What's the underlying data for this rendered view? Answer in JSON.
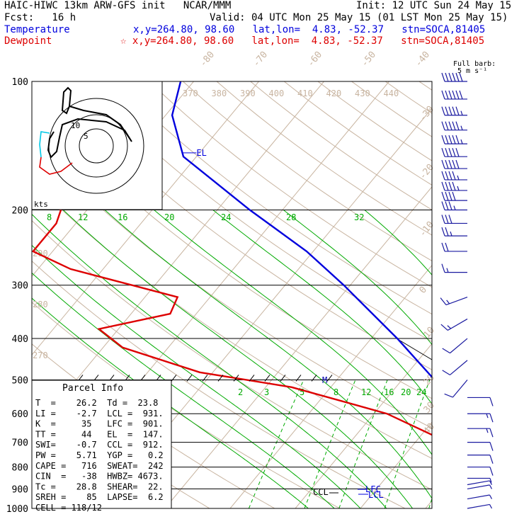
{
  "header": {
    "model": "HAIC-HIWC 13km ARW-GFS init   NCAR/MMM",
    "init": "Init: 12 UTC Sun 24 May 15",
    "fcst": "Fcst:   16 h",
    "valid": "Valid: 04 UTC Mon 25 May 15 (01 LST Mon 25 May 15)",
    "temp_label": "Temperature",
    "temp_info": "x,y=264.80, 98.60   lat,lon=  4.83, -52.37   stn=SOCA,81405",
    "dew_label": "Dewpoint",
    "dew_info": "☆ x,y=264.80, 98.60   lat,lon=  4.83, -52.37   stn=SOCA,81405",
    "barb_label1": "Full barb:",
    "barb_label2": "5 m s⁻¹"
  },
  "colors": {
    "temperature": "#0000dd",
    "dewpoint": "#dd0000",
    "mixing_ratio": "#00aa00",
    "adiabat": "#c8b4a0",
    "isobar": "#000000",
    "hodo_cyan": "#00c8e6"
  },
  "chart_data": {
    "type": "line",
    "title": "",
    "pressure_levels": [
      100,
      200,
      300,
      400,
      500,
      600,
      700,
      800,
      900,
      1000
    ],
    "isotherm_labels": [
      "-80",
      "-70",
      "-60",
      "-50",
      "-40",
      "-30",
      "-20",
      "-10",
      "0",
      "10",
      "20",
      "30",
      "40"
    ],
    "theta_labels": [
      "370",
      "380",
      "390",
      "400",
      "410",
      "420",
      "430",
      "440"
    ],
    "theta_left_labels": [
      "290",
      "280",
      "270"
    ],
    "mixing_ratio_labels_upper": [
      "8",
      "12",
      "16",
      "20",
      "24",
      "28",
      "32"
    ],
    "mixing_ratio_labels_lower": [
      "2",
      "3",
      "5",
      "8",
      "12",
      "16",
      "20",
      "24"
    ],
    "series": [
      {
        "name": "Temperature",
        "points": [
          [
            100,
            -82
          ],
          [
            120,
            -79
          ],
          [
            150,
            -72
          ],
          [
            200,
            -55
          ],
          [
            250,
            -41
          ],
          [
            300,
            -31
          ],
          [
            400,
            -16
          ],
          [
            500,
            -5
          ],
          [
            600,
            2
          ],
          [
            700,
            9
          ],
          [
            800,
            15
          ],
          [
            850,
            18
          ],
          [
            900,
            19
          ],
          [
            950,
            23
          ],
          [
            1000,
            26
          ]
        ]
      },
      {
        "name": "Dewpoint",
        "points": [
          [
            100,
            -95
          ],
          [
            125,
            -101
          ],
          [
            150,
            -100
          ],
          [
            175,
            -95
          ],
          [
            200,
            -84
          ],
          [
            215,
            -83
          ],
          [
            250,
            -83
          ],
          [
            275,
            -75
          ],
          [
            320,
            -55
          ],
          [
            350,
            -54
          ],
          [
            380,
            -63
          ],
          [
            420,
            -57
          ],
          [
            480,
            -42
          ],
          [
            520,
            -26
          ],
          [
            600,
            -8
          ],
          [
            700,
            5
          ],
          [
            800,
            13
          ],
          [
            850,
            15
          ],
          [
            900,
            19
          ],
          [
            950,
            21
          ],
          [
            980,
            23
          ]
        ]
      }
    ],
    "parcel_points": [
      [
        150,
        -72
      ],
      [
        200,
        -55
      ],
      [
        300,
        -31
      ],
      [
        400,
        -16
      ],
      [
        500,
        -5
      ]
    ],
    "level_markers": [
      {
        "label": "EL",
        "p": 147
      },
      {
        "label": "M",
        "p": 495
      },
      {
        "label": "LFC",
        "p": 901
      },
      {
        "label": "LCL",
        "p": 931
      },
      {
        "label": "CCL",
        "p": 912
      }
    ],
    "hodograph": {
      "ring_labels": [
        "5",
        "10"
      ],
      "units": "kts"
    },
    "wind_barbs": [
      {
        "p": 100,
        "speed": 60,
        "dir": 270
      },
      {
        "p": 110,
        "speed": 60,
        "dir": 270
      },
      {
        "p": 120,
        "speed": 55,
        "dir": 270
      },
      {
        "p": 130,
        "speed": 55,
        "dir": 270
      },
      {
        "p": 140,
        "speed": 55,
        "dir": 270
      },
      {
        "p": 150,
        "speed": 50,
        "dir": 270
      },
      {
        "p": 160,
        "speed": 50,
        "dir": 270
      },
      {
        "p": 170,
        "speed": 45,
        "dir": 270
      },
      {
        "p": 180,
        "speed": 45,
        "dir": 270
      },
      {
        "p": 190,
        "speed": 40,
        "dir": 270
      },
      {
        "p": 200,
        "speed": 35,
        "dir": 270
      },
      {
        "p": 215,
        "speed": 30,
        "dir": 270
      },
      {
        "p": 230,
        "speed": 25,
        "dir": 270
      },
      {
        "p": 250,
        "speed": 20,
        "dir": 270
      },
      {
        "p": 280,
        "speed": 15,
        "dir": 270
      },
      {
        "p": 320,
        "speed": 15,
        "dir": 250
      },
      {
        "p": 360,
        "speed": 15,
        "dir": 240
      },
      {
        "p": 400,
        "speed": 10,
        "dir": 230
      },
      {
        "p": 450,
        "speed": 10,
        "dir": 230
      },
      {
        "p": 500,
        "speed": 10,
        "dir": 220
      },
      {
        "p": 550,
        "speed": 10,
        "dir": 90
      },
      {
        "p": 600,
        "speed": 15,
        "dir": 90
      },
      {
        "p": 650,
        "speed": 15,
        "dir": 90
      },
      {
        "p": 700,
        "speed": 10,
        "dir": 90
      },
      {
        "p": 750,
        "speed": 10,
        "dir": 90
      },
      {
        "p": 800,
        "speed": 10,
        "dir": 90
      },
      {
        "p": 850,
        "speed": 5,
        "dir": 90
      },
      {
        "p": 880,
        "speed": 5,
        "dir": 80
      },
      {
        "p": 900,
        "speed": 5,
        "dir": 80
      },
      {
        "p": 950,
        "speed": 5,
        "dir": 80
      },
      {
        "p": 1000,
        "speed": 5,
        "dir": 80
      }
    ]
  },
  "parcel_info": {
    "title": "Parcel Info",
    "rows": [
      "T  =    26.2  Td =  23.8",
      "LI =    -2.7  LCL =  931.",
      "K  =     35   LFC =  901.",
      "TT =     44   EL  =  147.",
      "SWI=    -0.7  CCL =  912.",
      "PW =    5.71  YGP =   0.2",
      "CAPE =   716  SWEAT=  242",
      "CIN  =   -38  HWBZ= 4673.",
      "Tc =    28.8  SHEAR=  22.",
      "SREH =    85  LAPSE=  6.2",
      "CELL = 118/12"
    ]
  }
}
